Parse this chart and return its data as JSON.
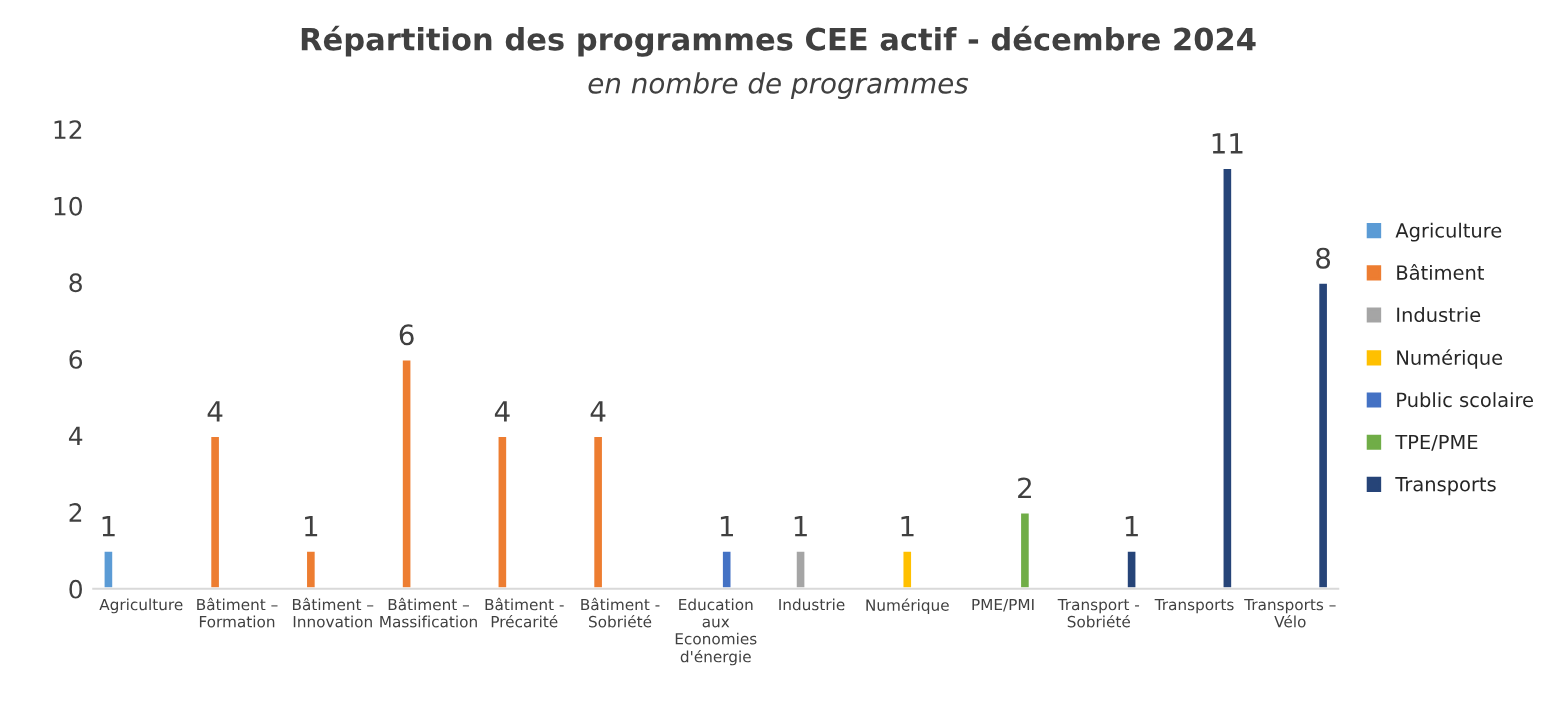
{
  "chart_data": {
    "type": "bar",
    "title": "Répartition des programmes CEE actif - décembre 2024",
    "subtitle": "en nombre de programmes",
    "categories": [
      "Agriculture",
      "Bâtiment – Formation",
      "Bâtiment – Innovation",
      "Bâtiment – Massification",
      "Bâtiment - Précarité",
      "Bâtiment - Sobriété",
      "Education aux Economies d'énergie",
      "Industrie",
      "Numérique",
      "PME/PMI",
      "Transport - Sobriété",
      "Transports",
      "Transports – Vélo"
    ],
    "series": [
      {
        "name": "Agriculture",
        "color": "#5b9bd5",
        "values": [
          1,
          null,
          null,
          null,
          null,
          null,
          null,
          null,
          null,
          null,
          null,
          null,
          null
        ]
      },
      {
        "name": "Bâtiment",
        "color": "#ed7d31",
        "values": [
          null,
          4,
          1,
          6,
          4,
          4,
          null,
          null,
          null,
          null,
          null,
          null,
          null
        ]
      },
      {
        "name": "Industrie",
        "color": "#a5a5a5",
        "values": [
          null,
          null,
          null,
          null,
          null,
          null,
          null,
          1,
          null,
          null,
          null,
          null,
          null
        ]
      },
      {
        "name": "Numérique",
        "color": "#ffc000",
        "values": [
          null,
          null,
          null,
          null,
          null,
          null,
          null,
          null,
          1,
          null,
          null,
          null,
          null
        ]
      },
      {
        "name": "Public scolaire",
        "color": "#4472c4",
        "values": [
          null,
          null,
          null,
          null,
          null,
          null,
          1,
          null,
          null,
          null,
          null,
          null,
          null
        ]
      },
      {
        "name": "TPE/PME",
        "color": "#70ad47",
        "values": [
          null,
          null,
          null,
          null,
          null,
          null,
          null,
          null,
          null,
          2,
          null,
          null,
          null
        ]
      },
      {
        "name": "Transports",
        "color": "#264478",
        "values": [
          null,
          null,
          null,
          null,
          null,
          null,
          null,
          null,
          null,
          null,
          1,
          11,
          8
        ]
      }
    ],
    "ylim": [
      0,
      12
    ],
    "yticks": [
      0,
      2,
      4,
      6,
      8,
      10,
      12
    ],
    "grid": false,
    "legend": "right",
    "data_labels": true
  }
}
